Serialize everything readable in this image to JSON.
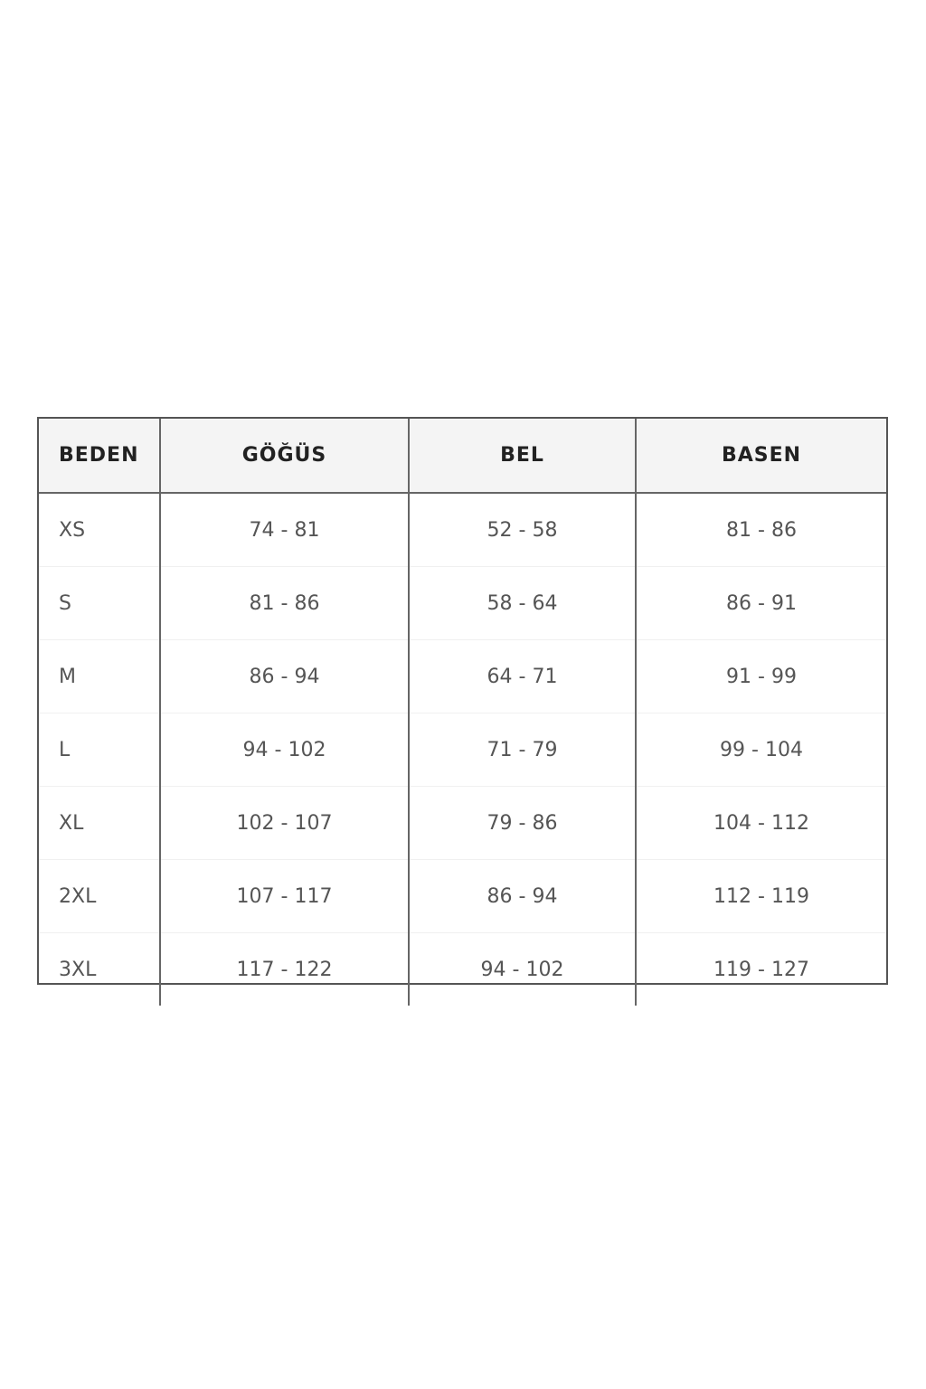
{
  "table": {
    "headers": [
      "BEDEN",
      "GÖĞÜS",
      "BEL",
      "BASEN"
    ],
    "rows": [
      [
        "XS",
        "74 - 81",
        "52 - 58",
        "81 - 86"
      ],
      [
        "S",
        "81 - 86",
        "58 - 64",
        "86 - 91"
      ],
      [
        "M",
        "86 - 94",
        "64 - 71",
        "91 - 99"
      ],
      [
        "L",
        "94 - 102",
        "71 - 79",
        "99 - 104"
      ],
      [
        "XL",
        "102 - 107",
        "79 - 86",
        "104 - 112"
      ],
      [
        "2XL",
        "107 - 117",
        "86 - 94",
        "112 - 119"
      ],
      [
        "3XL",
        "117 - 122",
        "94 - 102",
        "119 - 127"
      ]
    ]
  }
}
